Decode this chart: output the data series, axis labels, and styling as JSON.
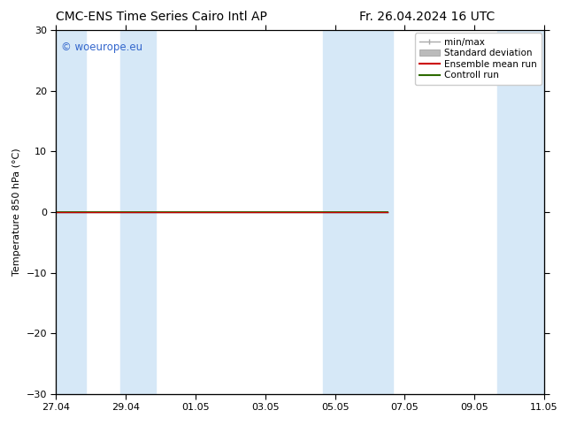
{
  "title_left": "CMC-ENS Time Series Cairo Intl AP",
  "title_right": "Fr. 26.04.2024 16 UTC",
  "ylabel": "Temperature 850 hPa (°C)",
  "ylim": [
    -30,
    30
  ],
  "yticks": [
    -30,
    -20,
    -10,
    0,
    10,
    20,
    30
  ],
  "x_min": 0,
  "x_max": 14,
  "xtick_labels": [
    "27.04",
    "29.04",
    "01.05",
    "03.05",
    "05.05",
    "07.05",
    "09.05",
    "11.05"
  ],
  "xtick_positions": [
    0,
    2,
    4,
    6,
    8,
    10,
    12,
    14
  ],
  "bg_color": "#ffffff",
  "plot_bg_color": "#ffffff",
  "shaded_bands": [
    {
      "x_start": 0.0,
      "x_end": 0.85,
      "color": "#d6e8f7"
    },
    {
      "x_start": 1.85,
      "x_end": 2.85,
      "color": "#d6e8f7"
    },
    {
      "x_start": 7.65,
      "x_end": 9.65,
      "color": "#d6e8f7"
    },
    {
      "x_start": 12.65,
      "x_end": 14.0,
      "color": "#d6e8f7"
    }
  ],
  "flat_line_x_end": 9.5,
  "flat_line_y": 0.0,
  "flat_line_color_black": "#111111",
  "control_run_color": "#2d6a00",
  "ensemble_mean_color": "#cc0000",
  "legend_labels": [
    "min/max",
    "Standard deviation",
    "Ensemble mean run",
    "Controll run"
  ],
  "legend_minmax_color": "#aaaaaa",
  "legend_stddev_color": "#bbbbbb",
  "legend_mean_color": "#cc0000",
  "legend_control_color": "#2d6a00",
  "watermark_text": "© woeurope.eu",
  "watermark_color": "#3366cc",
  "font_size_title": 10,
  "font_size_axis": 8,
  "font_size_legend": 7.5,
  "font_size_watermark": 8.5,
  "font_size_ylabel": 8
}
